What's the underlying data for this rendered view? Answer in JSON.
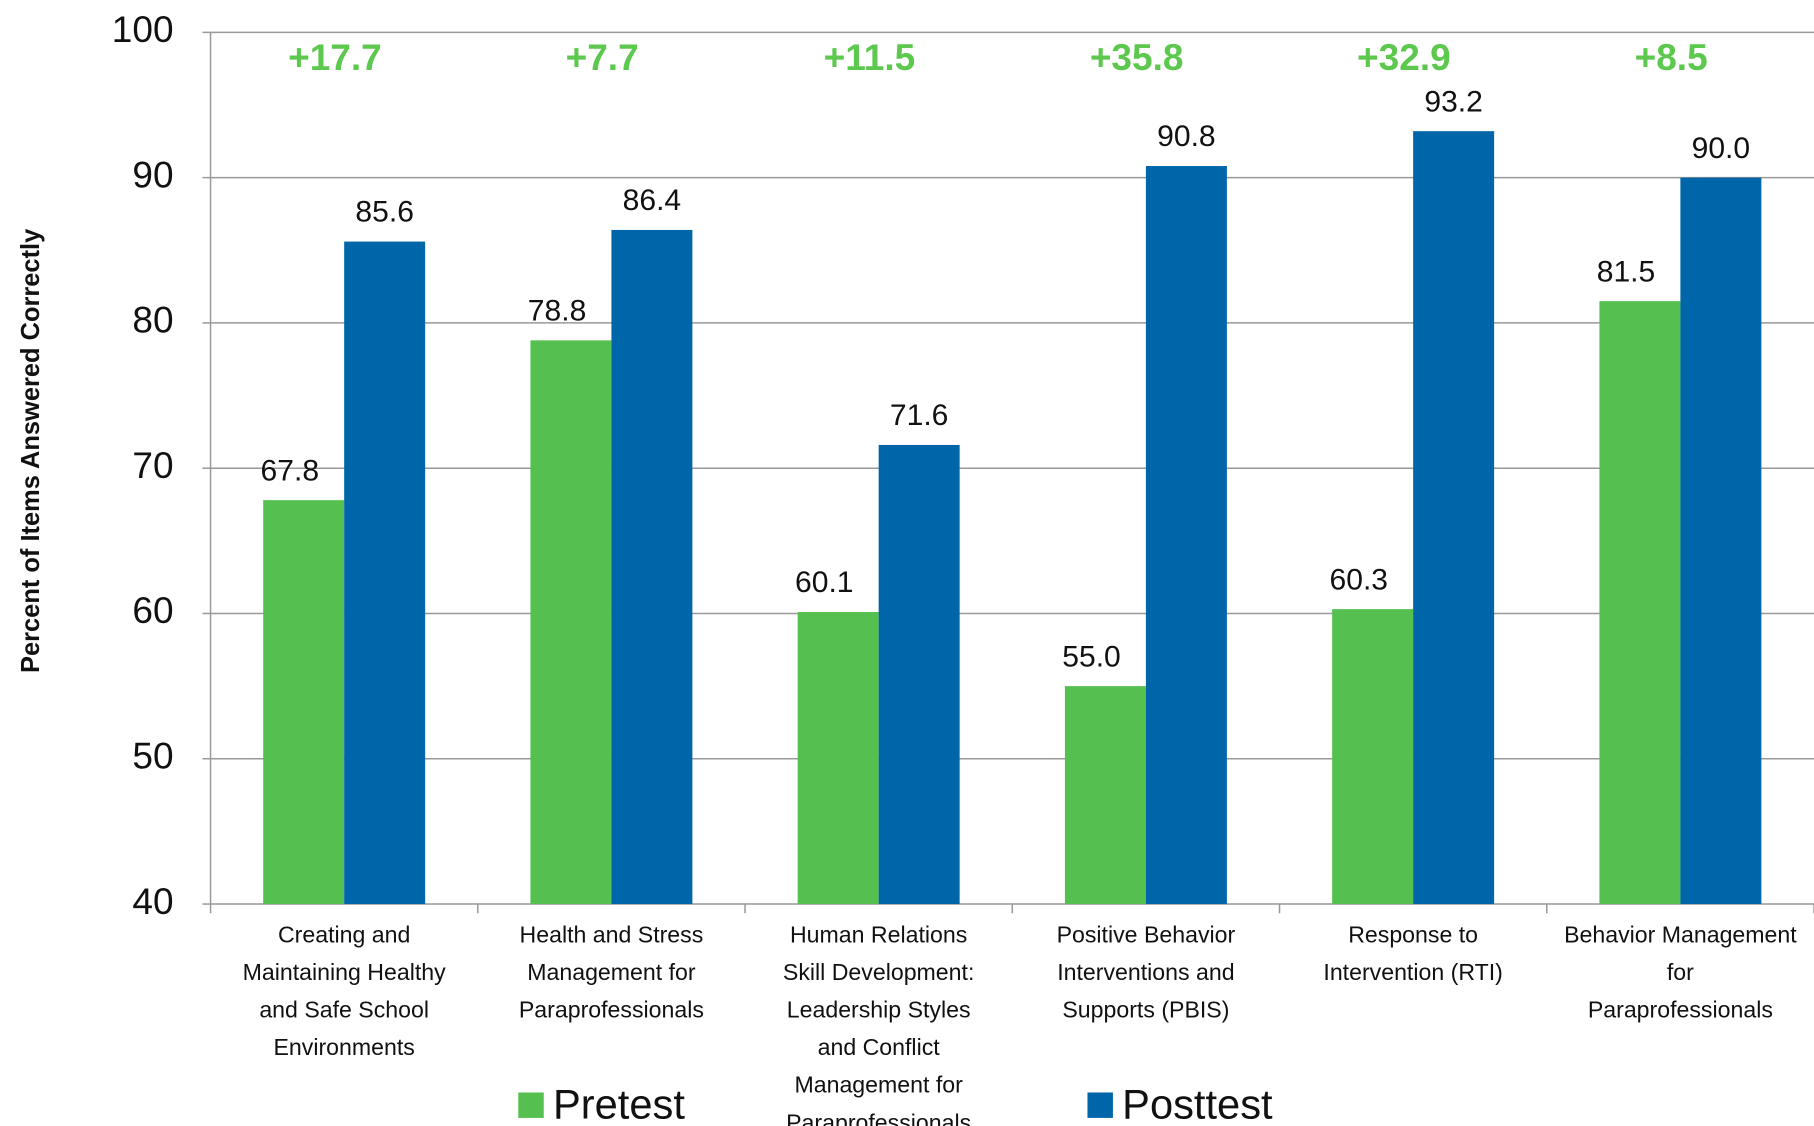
{
  "chart_data": {
    "type": "bar",
    "y_label": "Percent of Items Answered Correctly",
    "categories": [
      "Creating and Maintaining Healthy and Safe School Environments",
      "Health and Stress Management for Paraprofessionals",
      "Human Relations Skill Development: Leadership Styles and Conflict Management for Paraprofessionals",
      "Positive Behavior Interventions and Supports (PBIS)",
      "Response to Intervention (RTI)",
      "Behavior Management for Paraprofessionals"
    ],
    "series": [
      {
        "name": "Pretest",
        "color": "#55c050",
        "values": [
          67.8,
          78.8,
          60.1,
          55.0,
          60.3,
          81.5
        ],
        "value_labels": [
          "67.8",
          "78.8",
          "60.1",
          "55.0",
          "60.3",
          "81.5"
        ]
      },
      {
        "name": "Posttest",
        "color": "#0066aa",
        "values": [
          85.6,
          86.4,
          71.6,
          90.8,
          93.2,
          90.0
        ],
        "value_labels": [
          "85.6",
          "86.4",
          "71.6",
          "90.8",
          "93.2",
          "90.0"
        ]
      }
    ],
    "annotations": [
      "+17.7",
      "+7.7",
      "+11.5",
      "+35.8",
      "+32.9",
      "+8.5"
    ],
    "annotation_color": "#5cc84e",
    "ylim": [
      40,
      100
    ],
    "yticks": [
      40,
      50,
      60,
      70,
      80,
      90,
      100
    ],
    "grid": true,
    "legend": "bottom"
  }
}
